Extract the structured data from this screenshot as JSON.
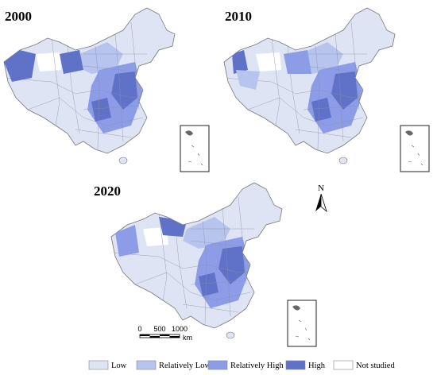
{
  "maps": [
    {
      "title": "2000"
    },
    {
      "title": "2010"
    },
    {
      "title": "2020"
    }
  ],
  "north_arrow": "N",
  "scale_bar": {
    "labels": [
      "0",
      "500",
      "1000"
    ],
    "unit": "km"
  },
  "legend": [
    {
      "label": "Low",
      "color": "#dfe4f4"
    },
    {
      "label": "Relatively Low",
      "color": "#b7c4ee"
    },
    {
      "label": "Relatively High",
      "color": "#8c9ce6"
    },
    {
      "label": "High",
      "color": "#5f72c8"
    },
    {
      "label": "Not studied",
      "color": "#ffffff"
    }
  ]
}
